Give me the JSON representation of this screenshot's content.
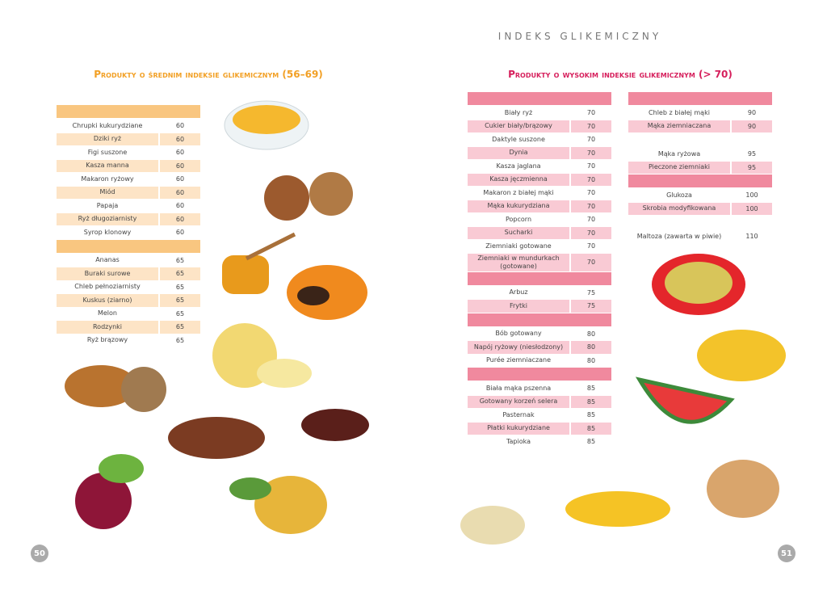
{
  "header": "INDEKS GLIKEMICZNY",
  "left": {
    "title": "Produkty o średnim indeksie glikemicznym (56–69)",
    "page": 50,
    "groups": [
      {
        "rows": [
          {
            "name": "Chrupki kukurydziane",
            "value": 60
          },
          {
            "name": "Dziki ryż",
            "value": 60
          },
          {
            "name": "Figi suszone",
            "value": 60
          },
          {
            "name": "Kasza manna",
            "value": 60
          },
          {
            "name": "Makaron ryżowy",
            "value": 60
          },
          {
            "name": "Miód",
            "value": 60
          },
          {
            "name": "Papaja",
            "value": 60
          },
          {
            "name": "Ryż długoziarnisty",
            "value": 60
          },
          {
            "name": "Syrop klonowy",
            "value": 60
          }
        ]
      },
      {
        "rows": [
          {
            "name": "Ananas",
            "value": 65
          },
          {
            "name": "Buraki surowe",
            "value": 65
          },
          {
            "name": "Chleb pełnoziarnisty",
            "value": 65
          },
          {
            "name": "Kuskus (ziarno)",
            "value": 65
          },
          {
            "name": "Melon",
            "value": 65
          },
          {
            "name": "Rodzynki",
            "value": 65
          },
          {
            "name": "Ryż brązowy",
            "value": 65
          }
        ]
      }
    ]
  },
  "right": {
    "title": "Produkty o wysokim indeksie glikemicznym (> 70)",
    "page": 51,
    "columns": [
      {
        "groups": [
          {
            "rows": [
              {
                "name": "Biały ryż",
                "value": 70
              },
              {
                "name": "Cukier biały/brązowy",
                "value": 70
              },
              {
                "name": "Daktyle suszone",
                "value": 70
              },
              {
                "name": "Dynia",
                "value": 70
              },
              {
                "name": "Kasza jaglana",
                "value": 70
              },
              {
                "name": "Kasza jęczmienna",
                "value": 70
              },
              {
                "name": "Makaron z białej mąki",
                "value": 70
              },
              {
                "name": "Mąka kukurydziana",
                "value": 70
              },
              {
                "name": "Popcorn",
                "value": 70
              },
              {
                "name": "Sucharki",
                "value": 70
              },
              {
                "name": "Ziemniaki gotowane",
                "value": 70
              },
              {
                "name": "Ziemniaki w mundurkach (gotowane)",
                "value": 70
              }
            ]
          },
          {
            "rows": [
              {
                "name": "Arbuz",
                "value": 75
              },
              {
                "name": "Frytki",
                "value": 75
              }
            ]
          },
          {
            "rows": [
              {
                "name": "Bób gotowany",
                "value": 80
              },
              {
                "name": "Napój ryżowy (niesłodzony)",
                "value": 80
              },
              {
                "name": "Purée ziemniaczane",
                "value": 80
              }
            ]
          },
          {
            "rows": [
              {
                "name": "Biała mąka pszenna",
                "value": 85
              },
              {
                "name": "Gotowany korzeń selera",
                "value": 85
              },
              {
                "name": "Pasternak",
                "value": 85
              },
              {
                "name": "Płatki kukurydziane",
                "value": 85
              },
              {
                "name": "Tapioka",
                "value": 85
              }
            ]
          }
        ]
      },
      {
        "groups": [
          {
            "rows": [
              {
                "name": "Chleb z białej mąki",
                "value": 90
              },
              {
                "name": "Mąka ziemniaczana",
                "value": 90
              }
            ]
          },
          {
            "rows": [
              {
                "name": "Mąka ryżowa",
                "value": 95
              },
              {
                "name": "Pieczone ziemniaki",
                "value": 95
              }
            ]
          },
          {
            "rows": [
              {
                "name": "Glukoza",
                "value": 100
              },
              {
                "name": "Skrobia modyfikowana",
                "value": 100
              }
            ]
          },
          {
            "rows": [
              {
                "name": "Maltoza (zawarta w piwie)",
                "value": 110
              }
            ]
          }
        ]
      }
    ]
  }
}
